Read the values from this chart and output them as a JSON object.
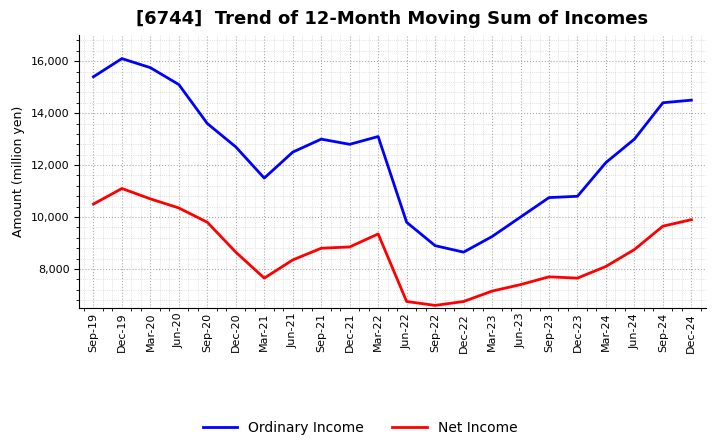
{
  "title": "[6744]  Trend of 12-Month Moving Sum of Incomes",
  "ylabel": "Amount (million yen)",
  "ylim": [
    6500,
    17000
  ],
  "yticks": [
    8000,
    10000,
    12000,
    14000,
    16000
  ],
  "background_color": "#ffffff",
  "grid_color": "#aaaaaa",
  "ordinary_income_color": "#0000ff",
  "net_income_color": "#ff0000",
  "labels": [
    "Sep-19",
    "Dec-19",
    "Mar-20",
    "Jun-20",
    "Sep-20",
    "Dec-20",
    "Mar-21",
    "Jun-21",
    "Sep-21",
    "Dec-21",
    "Mar-22",
    "Jun-22",
    "Sep-22",
    "Dec-22",
    "Mar-23",
    "Jun-23",
    "Sep-23",
    "Dec-23",
    "Mar-24",
    "Jun-24",
    "Sep-24",
    "Dec-24"
  ],
  "ordinary_income": [
    15400,
    16100,
    15750,
    15100,
    13600,
    12700,
    11500,
    12500,
    13000,
    12800,
    13100,
    9800,
    8900,
    8650,
    9250,
    10000,
    10750,
    10800,
    12100,
    13000,
    14400,
    14500
  ],
  "net_income": [
    10500,
    11100,
    10700,
    10350,
    9800,
    8650,
    7650,
    8350,
    8800,
    8850,
    9350,
    6750,
    6600,
    6750,
    7150,
    7400,
    7700,
    7650,
    8100,
    8750,
    9650,
    9900
  ],
  "legend_labels": [
    "Ordinary Income",
    "Net Income"
  ],
  "title_fontsize": 13,
  "axis_fontsize": 9,
  "tick_fontsize": 8
}
